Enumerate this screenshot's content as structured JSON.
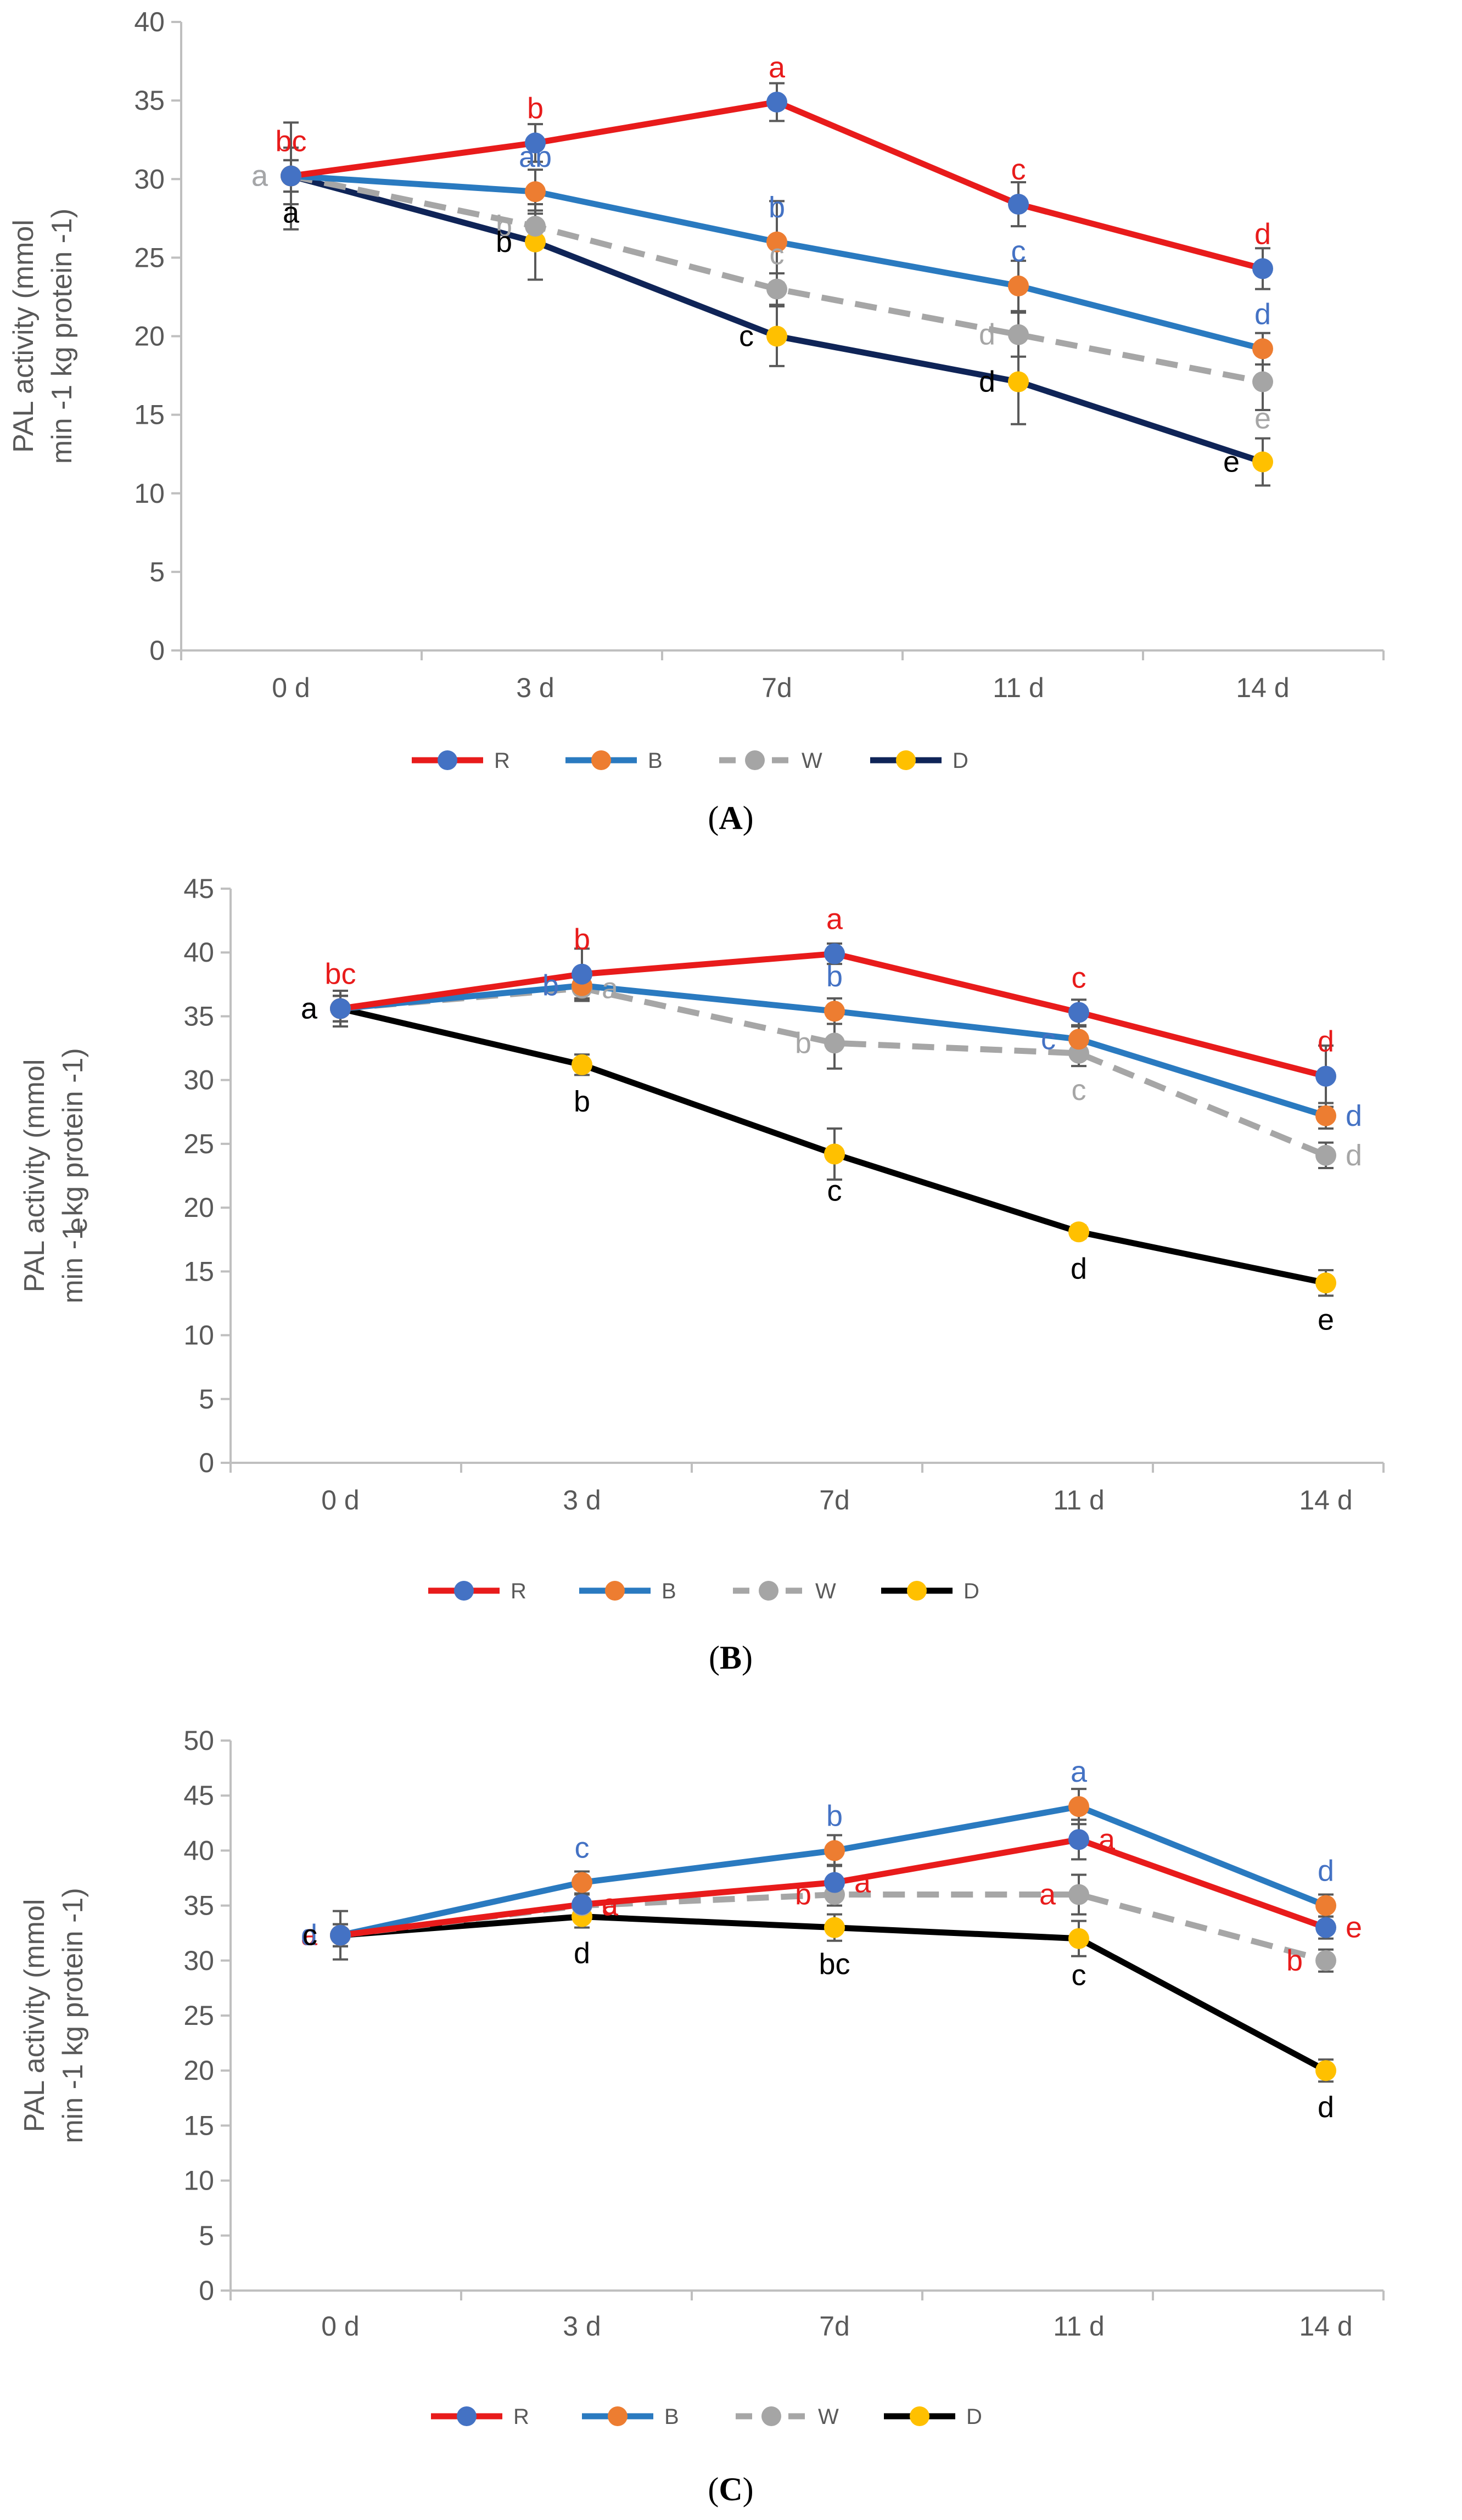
{
  "colors": {
    "R": "#e81b1b",
    "B": "#2a7ac0",
    "W": "#a6a6a6",
    "D_A": "#0f2457",
    "D": "#000000",
    "marker_blue": "#4472c4",
    "marker_orange": "#ed7d31",
    "marker_gray": "#a5a5a5",
    "marker_yellow": "#ffc000",
    "sig_green": "#70ad47",
    "axis": "#bfbfbf",
    "errbar": "#595959"
  },
  "chart_data": [
    {
      "type": "line",
      "panel_label": "A",
      "title": "",
      "ylabel_line1": "PAL activity (mmol",
      "ylabel_line2": "min ‑1 kg protein ‑1)",
      "categories": [
        "0 d",
        "3 d",
        "7d",
        "11 d",
        "14 d"
      ],
      "ylim": [
        0,
        40
      ],
      "yticks": [
        0,
        5,
        10,
        15,
        20,
        25,
        30,
        35,
        40
      ],
      "series": [
        {
          "name": "R",
          "values": [
            30.2,
            32.3,
            34.9,
            28.4,
            24.3
          ],
          "errors": [
            1.8,
            1.2,
            1.2,
            1.4,
            1.3
          ],
          "letters": [
            "bc",
            "b",
            "a",
            "c",
            "d"
          ],
          "letter_color": "#e81b1b",
          "letter_pos": [
            "above",
            "above",
            "above",
            "above",
            "above"
          ]
        },
        {
          "name": "B",
          "values": [
            30.2,
            29.2,
            26.0,
            23.2,
            19.2
          ],
          "errors": [
            1.0,
            1.4,
            2.6,
            1.6,
            1.0
          ],
          "letters": [
            "a",
            "ab",
            "b",
            "c",
            "d"
          ],
          "letter_color": "#4472c4",
          "letter_pos": [
            "left",
            "above",
            "above",
            "above",
            "above"
          ]
        },
        {
          "name": "W",
          "values": [
            30.2,
            27.0,
            23.0,
            20.1,
            17.1
          ],
          "errors": [
            1.0,
            1.0,
            1.0,
            1.4,
            1.8
          ],
          "letters": [
            "a",
            "b",
            "c",
            "d",
            "e"
          ],
          "letter_color": "#a6a6a6",
          "letter_pos": [
            "left",
            "left",
            "above",
            "left",
            "below"
          ]
        },
        {
          "name": "D",
          "values": [
            30.2,
            26.0,
            20.0,
            17.1,
            12.0
          ],
          "errors": [
            3.4,
            2.4,
            1.9,
            2.7,
            1.5
          ],
          "letters": [
            "a",
            "b",
            "c",
            "d",
            "e"
          ],
          "letter_color": "#000000",
          "letter_pos": [
            "below",
            "left",
            "left",
            "left",
            "left"
          ]
        }
      ],
      "legend": [
        "R",
        "B",
        "W",
        "D"
      ]
    },
    {
      "type": "line",
      "panel_label": "B",
      "title": "",
      "ylabel_line1": "PAL activity (mmol",
      "ylabel_line2": "min ‑1 kg protein ‑1)",
      "ylabel_stray": "e",
      "categories": [
        "0 d",
        "3 d",
        "7d",
        "11 d",
        "14 d"
      ],
      "ylim": [
        0,
        45
      ],
      "yticks": [
        0,
        5,
        10,
        15,
        20,
        25,
        30,
        35,
        40,
        45
      ],
      "series": [
        {
          "name": "R",
          "values": [
            35.6,
            38.3,
            39.9,
            35.3,
            30.3
          ],
          "errors": [
            1.0,
            2.0,
            0.8,
            1.0,
            2.4
          ],
          "letters": [
            "bc",
            "b",
            "a",
            "c",
            "d"
          ],
          "letter_color": "#e81b1b",
          "letter_pos": [
            "above",
            "above",
            "above",
            "above",
            "above"
          ]
        },
        {
          "name": "B",
          "values": [
            35.6,
            37.4,
            35.4,
            33.2,
            27.2
          ],
          "errors": [
            1.0,
            1.0,
            1.0,
            1.0,
            1.0
          ],
          "letters": [
            "a",
            "b",
            "b",
            "c",
            "d"
          ],
          "letter_color": "#4472c4",
          "letter_pos": [
            "left",
            "left",
            "above",
            "left",
            "right"
          ]
        },
        {
          "name": "W",
          "values": [
            35.6,
            37.2,
            32.9,
            32.1,
            24.1
          ],
          "errors": [
            1.0,
            1.0,
            2.0,
            1.0,
            1.0
          ],
          "letters": [
            "a",
            "a",
            "b",
            "c",
            "d"
          ],
          "letter_color": "#a6a6a6",
          "letter_pos": [
            "left",
            "right",
            "left",
            "below",
            "right"
          ]
        },
        {
          "name": "D",
          "values": [
            35.6,
            31.2,
            24.2,
            18.1,
            14.1
          ],
          "errors": [
            1.4,
            0.8,
            2.0,
            0.5,
            1.0
          ],
          "letters": [
            "a",
            "b",
            "c",
            "d",
            "e"
          ],
          "letter_color": "#000000",
          "letter_pos": [
            "left",
            "below",
            "below",
            "below",
            "below"
          ]
        }
      ],
      "legend": [
        "R",
        "B",
        "W",
        "D"
      ]
    },
    {
      "type": "line",
      "panel_label": "C",
      "title": "",
      "ylabel_line1": "PAL activity (mmol",
      "ylabel_line2": "min ‑1 kg protein ‑1)",
      "categories": [
        "0 d",
        "3 d",
        "7d",
        "11 d",
        "14 d"
      ],
      "ylim": [
        0,
        50
      ],
      "yticks": [
        0,
        5,
        10,
        15,
        20,
        25,
        30,
        35,
        40,
        45,
        50
      ],
      "series": [
        {
          "name": "R",
          "values": [
            32.3,
            35.1,
            37.1,
            41.0,
            33.0
          ],
          "errors": [
            1.0,
            1.0,
            1.6,
            1.8,
            1.0
          ],
          "letters": [
            "a",
            "c",
            "a",
            "a",
            "e"
          ],
          "letter_color": "#e81b1b",
          "letter_pos": [
            "left",
            "right",
            "right",
            "right",
            "right"
          ]
        },
        {
          "name": "B",
          "values": [
            32.3,
            37.1,
            40.0,
            44.0,
            35.0
          ],
          "errors": [
            1.0,
            1.0,
            1.4,
            1.6,
            1.0
          ],
          "letters": [
            "d",
            "c",
            "b",
            "a",
            "d"
          ],
          "letter_color": "#4472c4",
          "letter_pos": [
            "left",
            "above",
            "above",
            "above",
            "above"
          ]
        },
        {
          "name": "W",
          "values": [
            32.3,
            35.0,
            36.0,
            36.0,
            30.0
          ],
          "errors": [
            1.0,
            1.0,
            1.0,
            1.8,
            1.0
          ],
          "letters": [
            "c",
            "a",
            "b",
            "a",
            "b"
          ],
          "letter_color": "#e81b1b",
          "letter_pos": [
            "left",
            "right",
            "left",
            "left",
            "left"
          ]
        },
        {
          "name": "D",
          "values": [
            32.3,
            34.0,
            33.0,
            32.0,
            20.0
          ],
          "errors": [
            2.2,
            1.0,
            1.2,
            1.6,
            1.0
          ],
          "letters": [
            "c",
            "d",
            "bc",
            "c",
            "d"
          ],
          "letter_color": "#000000",
          "letter_pos": [
            "left",
            "below",
            "below",
            "below",
            "below"
          ]
        }
      ],
      "legend": [
        "R",
        "B",
        "W",
        "D"
      ]
    }
  ]
}
